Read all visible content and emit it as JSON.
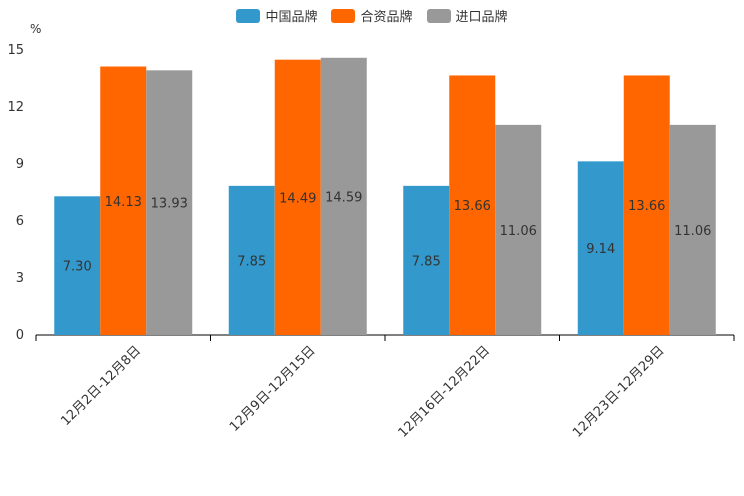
{
  "chart_data": {
    "type": "bar",
    "title": "",
    "xlabel": "",
    "ylabel": "%",
    "ylim": [
      0,
      15
    ],
    "yticks": [
      0,
      3,
      6,
      9,
      12,
      15
    ],
    "categories": [
      "12月2日-12月8日",
      "12月9日-12月15日",
      "12月16日-12月22日",
      "12月23日-12月29日"
    ],
    "series": [
      {
        "name": "中国品牌",
        "color": "#3399cc",
        "values": [
          7.3,
          7.85,
          7.85,
          9.14
        ]
      },
      {
        "name": "合资品牌",
        "color": "#ff6600",
        "values": [
          14.13,
          14.49,
          13.66,
          13.66
        ]
      },
      {
        "name": "进口品牌",
        "color": "#999999",
        "values": [
          13.93,
          14.59,
          11.06,
          11.06
        ]
      }
    ],
    "legend_position": "top-center"
  }
}
